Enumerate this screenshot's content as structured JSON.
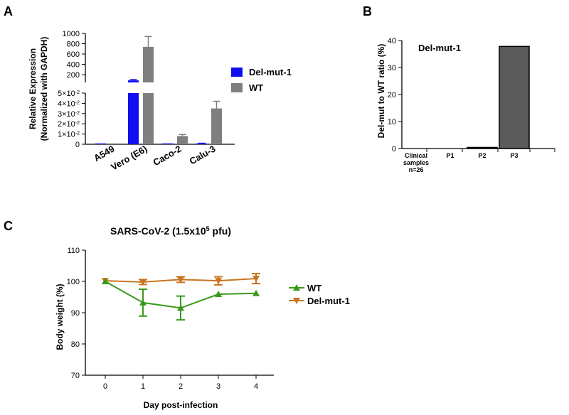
{
  "chart_data": [
    {
      "panel": "A",
      "type": "bar",
      "categories": [
        "A549",
        "Vero (E6)",
        "Caco-2",
        "Calu-3"
      ],
      "series": [
        {
          "name": "Del-mut-1",
          "color": "#1010ee",
          "values": [
            0,
            90,
            0.0003,
            0.0007
          ],
          "errors": [
            0,
            15,
            0,
            0.0003
          ]
        },
        {
          "name": "WT",
          "color": "#7f7f7f",
          "values": [
            0.0003,
            740,
            0.008,
            0.035
          ],
          "errors": [
            0,
            200,
            0.0015,
            0.007
          ]
        }
      ],
      "ylabel": "Relative Expression",
      "ylabel2": "(Normalized with GAPDH)",
      "upper_ticks": [
        "200",
        "400",
        "600",
        "800",
        "1000"
      ],
      "upper_range": [
        50,
        1000
      ],
      "lower_ticks": [
        "0",
        "1×10",
        "2×10",
        "3×10",
        "4×10",
        "5×10"
      ],
      "lower_tick_exponent": "-2",
      "lower_range": [
        0,
        0.05
      ]
    },
    {
      "panel": "B",
      "type": "bar",
      "categories": [
        "Clinical samples n=26",
        "P1",
        "P2",
        "P3"
      ],
      "category_lines": [
        [
          "Clinical",
          "samples",
          "n=26"
        ],
        [
          "P1"
        ],
        [
          "P2"
        ],
        [
          "P3"
        ]
      ],
      "values": [
        0,
        0,
        0.4,
        37.8
      ],
      "color": "#5a5a5a",
      "annotation": "Del-mut-1",
      "ylabel": "Del-mut to WT ratio (%)",
      "yticks": [
        "0",
        "10",
        "20",
        "30",
        "40"
      ],
      "ylim": [
        0,
        40
      ]
    },
    {
      "panel": "C",
      "type": "line",
      "title": "SARS-CoV-2  (1.5x10",
      "title_sup": "5",
      "title_tail": " pfu)",
      "x": [
        0,
        1,
        2,
        3,
        4
      ],
      "series": [
        {
          "name": "WT",
          "color": "#3a9a1a",
          "marker": "triangle-up",
          "values": [
            100,
            93.2,
            91.5,
            95.9,
            96.2
          ],
          "errors": [
            0,
            4.3,
            3.8,
            0,
            0
          ]
        },
        {
          "name": "Del-mut-1",
          "color": "#c8751e",
          "marker": "triangle-down",
          "values": [
            100.2,
            99.8,
            100.6,
            100.2,
            100.9
          ],
          "errors": [
            0,
            0.8,
            0.9,
            1.3,
            1.6
          ]
        }
      ],
      "xlabel": "Day post-infection",
      "ylabel": "Body weight (%)",
      "xticks": [
        "0",
        "1",
        "2",
        "3",
        "4"
      ],
      "yticks": [
        "70",
        "80",
        "90",
        "100",
        "110"
      ],
      "ylim": [
        70,
        110
      ]
    }
  ]
}
